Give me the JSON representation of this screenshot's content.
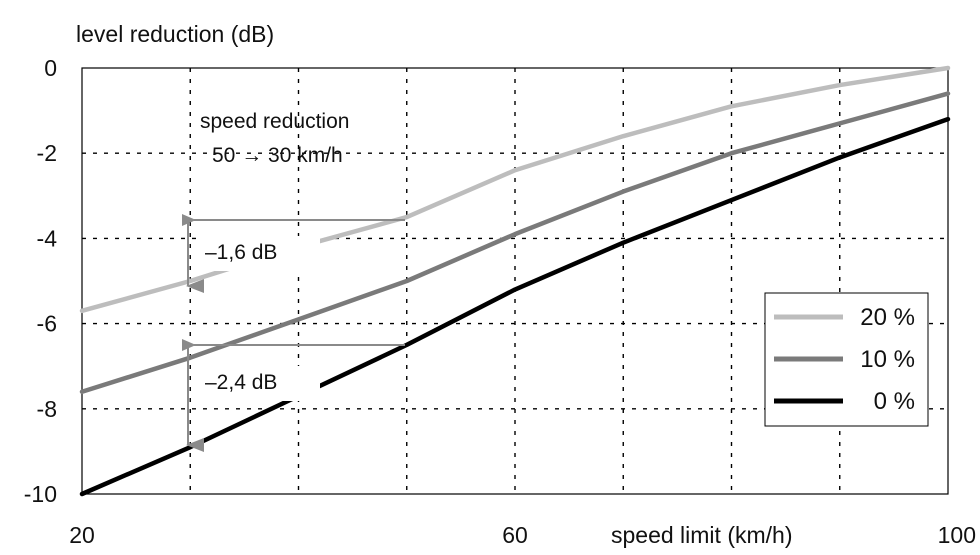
{
  "chart_data": {
    "type": "line",
    "title": "",
    "ylabel": "level reduction (dB)",
    "xlabel": "speed limit (km/h)",
    "xlim": [
      20,
      100
    ],
    "ylim": [
      -10,
      0
    ],
    "x_ticks": [
      20,
      60,
      100
    ],
    "x_tick_labels": [
      "20",
      "60",
      "100"
    ],
    "y_ticks": [
      0,
      -2,
      -4,
      -6,
      -8,
      -10
    ],
    "y_tick_labels": [
      "0",
      "-2",
      "-4",
      "-6",
      "-8",
      "-10"
    ],
    "grid": true,
    "legend_position": "right",
    "x": [
      20,
      30,
      40,
      50,
      60,
      70,
      80,
      90,
      100
    ],
    "series": [
      {
        "name": "20 %",
        "color": "#bdbdbd",
        "values": [
          -5.7,
          -5.0,
          -4.2,
          -3.5,
          -2.4,
          -1.6,
          -0.9,
          -0.4,
          0.0
        ]
      },
      {
        "name": "10 %",
        "color": "#7a7a7a",
        "values": [
          -7.6,
          -6.8,
          -5.9,
          -5.0,
          -3.9,
          -2.9,
          -2.0,
          -1.3,
          -0.6
        ]
      },
      {
        "name": "0 %",
        "color": "#000000",
        "values": [
          -10.0,
          -8.9,
          -7.7,
          -6.5,
          -5.2,
          -4.1,
          -3.1,
          -2.1,
          -1.2
        ]
      }
    ],
    "annotations": {
      "speed_reduction_line1": "speed reduction",
      "speed_reduction_line2": "50 → 30 km/h",
      "delta_20": "–1,6 dB",
      "delta_0": "–2,4 dB"
    }
  }
}
